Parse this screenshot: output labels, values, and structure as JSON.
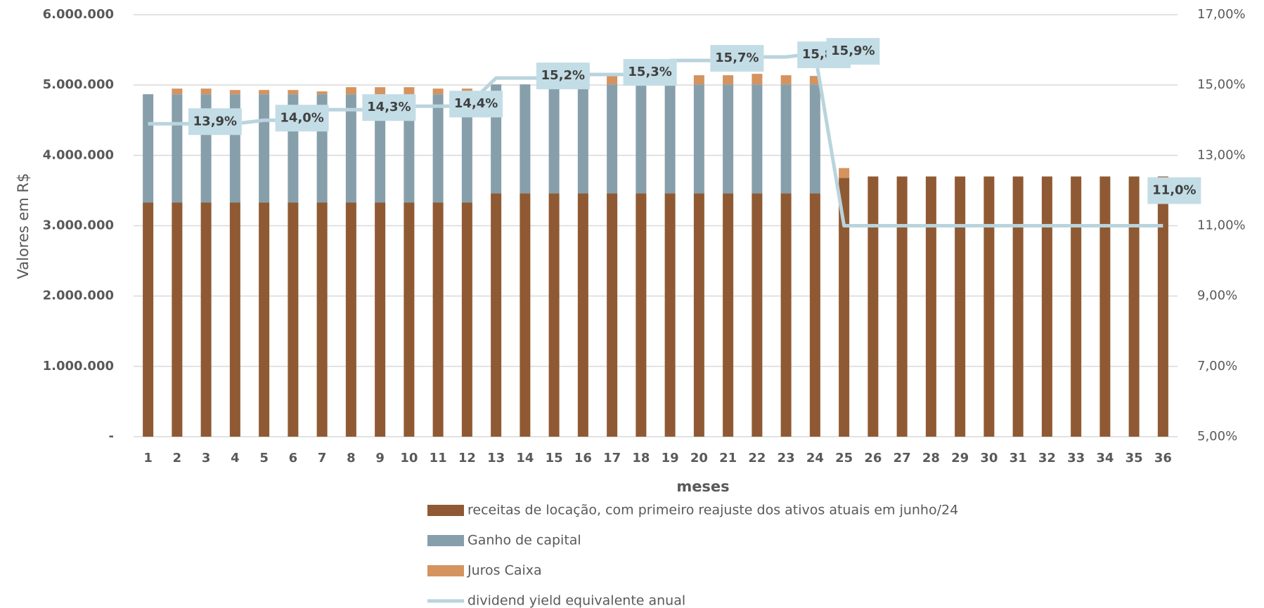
{
  "chart_data": {
    "type": "bar",
    "x_label": "meses",
    "y_label": "Valores em R$",
    "categories": [
      "1",
      "2",
      "3",
      "4",
      "5",
      "6",
      "7",
      "8",
      "9",
      "10",
      "11",
      "12",
      "13",
      "14",
      "15",
      "16",
      "17",
      "18",
      "19",
      "20",
      "21",
      "22",
      "23",
      "24",
      "25",
      "26",
      "27",
      "28",
      "29",
      "30",
      "31",
      "32",
      "33",
      "34",
      "35",
      "36"
    ],
    "series": [
      {
        "name": "receitas de locação, com primeiro reajuste dos ativos atuais em junho/24",
        "color": "#8f5a33",
        "type": "bar",
        "values": [
          3330000,
          3330000,
          3330000,
          3330000,
          3330000,
          3330000,
          3330000,
          3330000,
          3330000,
          3330000,
          3330000,
          3330000,
          3460000,
          3460000,
          3460000,
          3460000,
          3460000,
          3460000,
          3460000,
          3460000,
          3460000,
          3460000,
          3460000,
          3460000,
          3680000,
          3700000,
          3700000,
          3700000,
          3700000,
          3700000,
          3700000,
          3700000,
          3700000,
          3700000,
          3700000,
          3700000
        ]
      },
      {
        "name": "Ganho de capital",
        "color": "#879fab",
        "type": "bar",
        "values": [
          1540000,
          1540000,
          1540000,
          1540000,
          1540000,
          1540000,
          1540000,
          1540000,
          1540000,
          1540000,
          1540000,
          1540000,
          1550000,
          1550000,
          1550000,
          1550000,
          1550000,
          1550000,
          1550000,
          1550000,
          1550000,
          1550000,
          1550000,
          1550000,
          0,
          0,
          0,
          0,
          0,
          0,
          0,
          0,
          0,
          0,
          0,
          0
        ]
      },
      {
        "name": "Juros Caixa",
        "color": "#d4935f",
        "type": "bar",
        "values": [
          0,
          80000,
          80000,
          60000,
          60000,
          60000,
          40000,
          100000,
          100000,
          100000,
          80000,
          80000,
          0,
          0,
          0,
          100000,
          120000,
          130000,
          80000,
          130000,
          130000,
          150000,
          130000,
          120000,
          140000,
          0,
          0,
          0,
          0,
          0,
          0,
          0,
          0,
          0,
          0,
          0
        ]
      },
      {
        "name": "dividend yield equivalente anual",
        "color": "#b9d4dd",
        "type": "line",
        "axis": "y2",
        "values": [
          13.9,
          13.9,
          13.9,
          13.9,
          14.0,
          14.0,
          14.3,
          14.3,
          14.3,
          14.4,
          14.4,
          14.4,
          15.2,
          15.2,
          15.2,
          15.3,
          15.3,
          15.3,
          15.7,
          15.7,
          15.7,
          15.8,
          15.8,
          15.9,
          11.0,
          11.0,
          11.0,
          11.0,
          11.0,
          11.0,
          11.0,
          11.0,
          11.0,
          11.0,
          11.0,
          11.0
        ],
        "value_labels": [
          null,
          "13,9%",
          null,
          null,
          "14,0%",
          null,
          null,
          "14,3%",
          null,
          null,
          "14,4%",
          null,
          null,
          "15,2%",
          null,
          null,
          "15,3%",
          null,
          null,
          "15,7%",
          null,
          null,
          "15,8%",
          "15,9%",
          null,
          null,
          null,
          null,
          null,
          null,
          null,
          null,
          null,
          null,
          null,
          "11,0%"
        ]
      }
    ],
    "ylim": [
      0,
      6000000
    ],
    "yticks": [
      {
        "value": 0,
        "label": "-"
      },
      {
        "value": 1000000,
        "label": "1.000.000"
      },
      {
        "value": 2000000,
        "label": "2.000.000"
      },
      {
        "value": 3000000,
        "label": "3.000.000"
      },
      {
        "value": 4000000,
        "label": "4.000.000"
      },
      {
        "value": 5000000,
        "label": "5.000.000"
      },
      {
        "value": 6000000,
        "label": "6.000.000"
      }
    ],
    "y2lim": [
      5,
      17
    ],
    "y2ticks": [
      {
        "value": 5,
        "label": "5,00%"
      },
      {
        "value": 7,
        "label": "7,00%"
      },
      {
        "value": 9,
        "label": "9,00%"
      },
      {
        "value": 11,
        "label": "11,00%"
      },
      {
        "value": 13,
        "label": "13,00%"
      },
      {
        "value": 15,
        "label": "15,00%"
      },
      {
        "value": 17,
        "label": "17,00%"
      }
    ],
    "grid": true,
    "legend": "bottom"
  }
}
